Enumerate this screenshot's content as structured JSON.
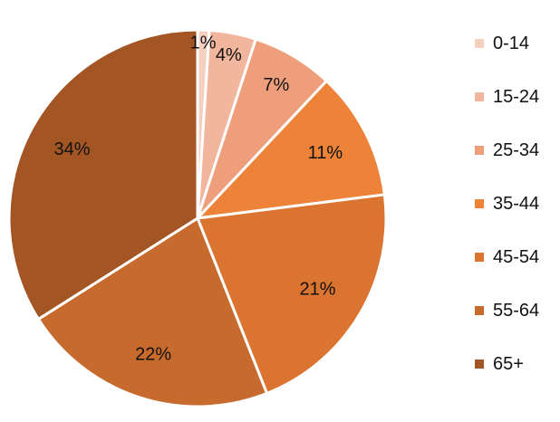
{
  "chart_data": {
    "type": "pie",
    "title": "",
    "categories": [
      "0-14",
      "15-24",
      "25-34",
      "35-44",
      "45-54",
      "55-64",
      "65+"
    ],
    "values": [
      1,
      4,
      7,
      11,
      21,
      22,
      34
    ],
    "data_labels": [
      "1%",
      "4%",
      "7%",
      "11%",
      "21%",
      "22%",
      "34%"
    ],
    "colors": [
      "#f5cfc0",
      "#f2b59e",
      "#ef9e7c",
      "#ec8338",
      "#dc7431",
      "#c76a2d",
      "#a45524"
    ],
    "legend": {
      "position": "right"
    }
  }
}
